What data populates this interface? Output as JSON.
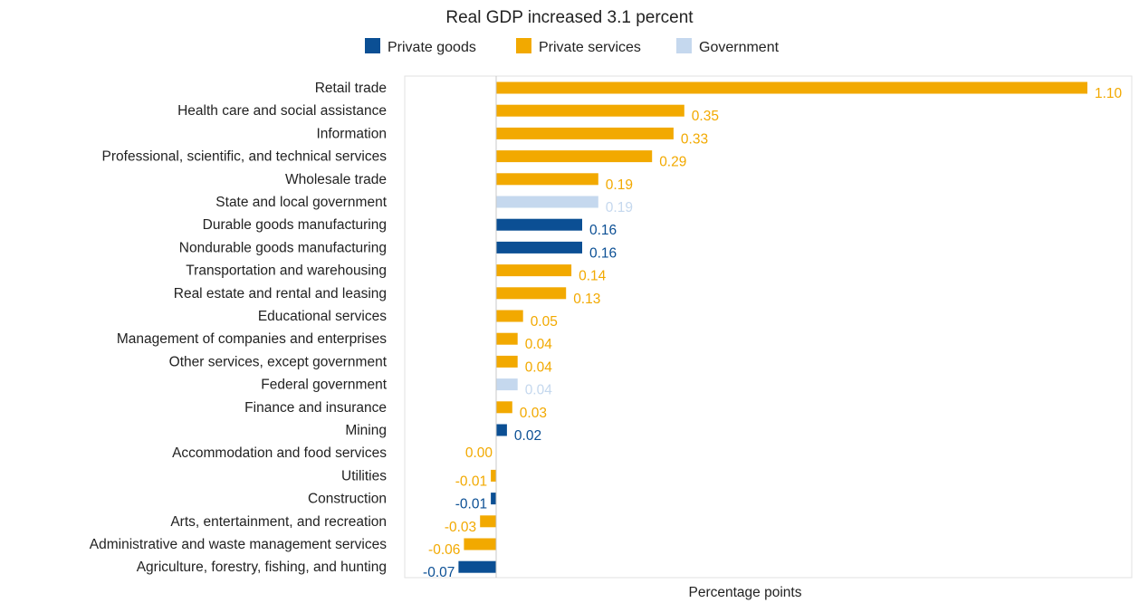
{
  "chart_data": {
    "type": "bar",
    "orientation": "horizontal",
    "title": "Real GDP increased 3.1 percent",
    "xlabel": "Percentage points",
    "ylabel": "",
    "xlim": [
      -0.17,
      1.22
    ],
    "grid": false,
    "legend_position": "top",
    "legend": [
      {
        "key": "goods",
        "label": "Private goods",
        "color": "#0B4F94"
      },
      {
        "key": "services",
        "label": "Private services",
        "color": "#F2A900"
      },
      {
        "key": "government",
        "label": "Government",
        "color": "#C5D8EE"
      }
    ],
    "categories": [
      "Retail trade",
      "Health care and social assistance",
      "Information",
      "Professional, scientific, and technical services",
      "Wholesale trade",
      "State and local government",
      "Durable goods manufacturing",
      "Nondurable goods manufacturing",
      "Transportation and warehousing",
      "Real estate and rental and leasing",
      "Educational services",
      "Management of companies and enterprises",
      "Other services, except government",
      "Federal government",
      "Finance and insurance",
      "Mining",
      "Accommodation and food services",
      "Utilities",
      "Construction",
      "Arts, entertainment, and recreation",
      "Administrative and waste management services",
      "Agriculture, forestry, fishing, and hunting"
    ],
    "values": [
      1.1,
      0.35,
      0.33,
      0.29,
      0.19,
      0.19,
      0.16,
      0.16,
      0.14,
      0.13,
      0.05,
      0.04,
      0.04,
      0.04,
      0.03,
      0.02,
      0.0,
      -0.01,
      -0.01,
      -0.03,
      -0.06,
      -0.07
    ],
    "value_labels": [
      "1.10",
      "0.35",
      "0.33",
      "0.29",
      "0.19",
      "0.19",
      "0.16",
      "0.16",
      "0.14",
      "0.13",
      "0.05",
      "0.04",
      "0.04",
      "0.04",
      "0.03",
      "0.02",
      "0.00",
      "-0.01",
      "-0.01",
      "-0.03",
      "-0.06",
      "-0.07"
    ],
    "groups": [
      "services",
      "services",
      "services",
      "services",
      "services",
      "government",
      "goods",
      "goods",
      "services",
      "services",
      "services",
      "services",
      "services",
      "government",
      "services",
      "goods",
      "services",
      "services",
      "goods",
      "services",
      "services",
      "goods"
    ]
  }
}
